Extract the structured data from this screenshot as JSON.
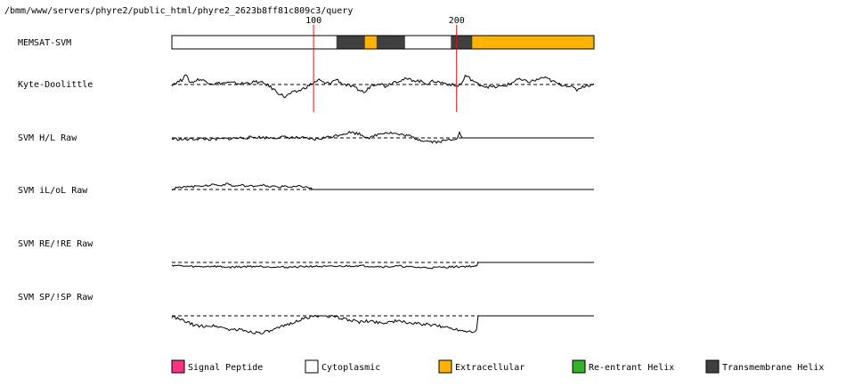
{
  "header": {
    "path": "/bmm/www/servers/phyre2/public_html/phyre2_2623b8ff81c809c3/query"
  },
  "chart_data": {
    "type": "line",
    "sequence_length": 296,
    "position_ticks": [
      {
        "label": "100",
        "position": 100
      },
      {
        "label": "200",
        "position": 200
      }
    ],
    "memsat_segments": [
      {
        "start": 1,
        "end": 115,
        "type": "cytoplasmic"
      },
      {
        "start": 116,
        "end": 135,
        "type": "transmembrane"
      },
      {
        "start": 136,
        "end": 143,
        "type": "extracellular"
      },
      {
        "start": 144,
        "end": 163,
        "type": "transmembrane"
      },
      {
        "start": 164,
        "end": 195,
        "type": "cytoplasmic"
      },
      {
        "start": 196,
        "end": 210,
        "type": "transmembrane"
      },
      {
        "start": 211,
        "end": 296,
        "type": "extracellular"
      }
    ],
    "tracks": [
      {
        "label": "MEMSAT-SVM",
        "kind": "bar"
      },
      {
        "label": "Kyte-Doolittle",
        "kind": "line",
        "profile": [
          [
            1,
            0.0
          ],
          [
            8,
            0.25
          ],
          [
            10,
            0.6
          ],
          [
            14,
            0.1
          ],
          [
            20,
            0.3
          ],
          [
            30,
            0.05
          ],
          [
            40,
            0.1
          ],
          [
            50,
            0.05
          ],
          [
            60,
            0.15
          ],
          [
            66,
            0.05
          ],
          [
            70,
            -0.15
          ],
          [
            76,
            -0.5
          ],
          [
            80,
            -0.7
          ],
          [
            84,
            -0.5
          ],
          [
            90,
            -0.35
          ],
          [
            96,
            -0.1
          ],
          [
            100,
            0.1
          ],
          [
            104,
            0.25
          ],
          [
            108,
            0.05
          ],
          [
            112,
            0.1
          ],
          [
            116,
            0.3
          ],
          [
            120,
            0.05
          ],
          [
            126,
            -0.1
          ],
          [
            136,
            -0.45
          ],
          [
            140,
            -0.05
          ],
          [
            146,
            0.1
          ],
          [
            150,
            -0.1
          ],
          [
            156,
            0.15
          ],
          [
            164,
            0.3
          ],
          [
            170,
            0.25
          ],
          [
            176,
            0.15
          ],
          [
            180,
            0.05
          ],
          [
            184,
            0.2
          ],
          [
            190,
            0.1
          ],
          [
            196,
            0.0
          ],
          [
            200,
            -0.1
          ],
          [
            204,
            0.1
          ],
          [
            206,
            0.5
          ],
          [
            210,
            0.3
          ],
          [
            214,
            0.05
          ],
          [
            220,
            -0.1
          ],
          [
            226,
            -0.15
          ],
          [
            232,
            -0.1
          ],
          [
            238,
            0.05
          ],
          [
            242,
            0.3
          ],
          [
            250,
            0.15
          ],
          [
            256,
            0.25
          ],
          [
            260,
            0.4
          ],
          [
            264,
            0.3
          ],
          [
            268,
            0.15
          ],
          [
            272,
            0.0
          ],
          [
            278,
            -0.05
          ],
          [
            284,
            -0.3
          ],
          [
            288,
            -0.1
          ],
          [
            292,
            -0.05
          ],
          [
            296,
            0.05
          ]
        ]
      },
      {
        "label": "SVM H/L Raw",
        "kind": "line",
        "profile": [
          [
            1,
            -0.05
          ],
          [
            10,
            -0.1
          ],
          [
            20,
            -0.05
          ],
          [
            30,
            -0.1
          ],
          [
            40,
            -0.05
          ],
          [
            50,
            0.0
          ],
          [
            60,
            0.05
          ],
          [
            70,
            0.0
          ],
          [
            80,
            0.05
          ],
          [
            90,
            0.0
          ],
          [
            96,
            -0.05
          ],
          [
            100,
            -0.1
          ],
          [
            104,
            -0.05
          ],
          [
            110,
            0.05
          ],
          [
            116,
            0.15
          ],
          [
            120,
            0.25
          ],
          [
            126,
            0.35
          ],
          [
            132,
            0.25
          ],
          [
            136,
            0.1
          ],
          [
            140,
            0.0
          ],
          [
            144,
            0.2
          ],
          [
            150,
            0.35
          ],
          [
            156,
            0.3
          ],
          [
            160,
            0.2
          ],
          [
            166,
            0.15
          ],
          [
            170,
            0.0
          ],
          [
            176,
            -0.15
          ],
          [
            180,
            -0.2
          ],
          [
            186,
            -0.25
          ],
          [
            190,
            -0.2
          ],
          [
            196,
            -0.1
          ],
          [
            200,
            0.0
          ],
          [
            202,
            0.3
          ],
          [
            204,
            0.0
          ],
          [
            296,
            0.0
          ]
        ]
      },
      {
        "label": "SVM iL/oL Raw",
        "kind": "line",
        "profile": [
          [
            1,
            0.0
          ],
          [
            4,
            0.2
          ],
          [
            8,
            0.15
          ],
          [
            12,
            0.35
          ],
          [
            16,
            0.25
          ],
          [
            20,
            0.4
          ],
          [
            24,
            0.3
          ],
          [
            30,
            0.5
          ],
          [
            34,
            0.35
          ],
          [
            40,
            0.55
          ],
          [
            44,
            0.3
          ],
          [
            50,
            0.4
          ],
          [
            54,
            0.3
          ],
          [
            60,
            0.35
          ],
          [
            64,
            0.45
          ],
          [
            68,
            0.25
          ],
          [
            72,
            0.3
          ],
          [
            76,
            0.2
          ],
          [
            80,
            0.35
          ],
          [
            84,
            0.2
          ],
          [
            90,
            0.3
          ],
          [
            96,
            0.2
          ],
          [
            100,
            0.0
          ],
          [
            296,
            0.0
          ]
        ]
      },
      {
        "label": "SVM RE/!RE Raw",
        "kind": "line",
        "profile": [
          [
            1,
            -0.25
          ],
          [
            10,
            -0.35
          ],
          [
            20,
            -0.4
          ],
          [
            30,
            -0.35
          ],
          [
            40,
            -0.45
          ],
          [
            50,
            -0.4
          ],
          [
            60,
            -0.35
          ],
          [
            70,
            -0.4
          ],
          [
            80,
            -0.45
          ],
          [
            90,
            -0.4
          ],
          [
            100,
            -0.35
          ],
          [
            110,
            -0.4
          ],
          [
            120,
            -0.35
          ],
          [
            130,
            -0.3
          ],
          [
            140,
            -0.35
          ],
          [
            150,
            -0.4
          ],
          [
            160,
            -0.35
          ],
          [
            170,
            -0.45
          ],
          [
            180,
            -0.5
          ],
          [
            190,
            -0.45
          ],
          [
            200,
            -0.4
          ],
          [
            210,
            -0.35
          ],
          [
            214,
            -0.4
          ],
          [
            215,
            0.0
          ],
          [
            296,
            0.0
          ]
        ]
      },
      {
        "label": "SVM SP/!SP Raw",
        "kind": "line",
        "profile": [
          [
            1,
            -0.05
          ],
          [
            6,
            -0.2
          ],
          [
            10,
            -0.3
          ],
          [
            14,
            -0.45
          ],
          [
            20,
            -0.6
          ],
          [
            26,
            -0.55
          ],
          [
            34,
            -0.6
          ],
          [
            40,
            -0.75
          ],
          [
            50,
            -0.8
          ],
          [
            56,
            -0.9
          ],
          [
            62,
            -0.95
          ],
          [
            68,
            -0.9
          ],
          [
            74,
            -0.75
          ],
          [
            80,
            -0.55
          ],
          [
            86,
            -0.35
          ],
          [
            92,
            -0.2
          ],
          [
            98,
            -0.05
          ],
          [
            104,
            0.0
          ],
          [
            110,
            0.0
          ],
          [
            116,
            -0.1
          ],
          [
            124,
            -0.2
          ],
          [
            132,
            -0.35
          ],
          [
            140,
            -0.3
          ],
          [
            148,
            -0.4
          ],
          [
            156,
            -0.3
          ],
          [
            164,
            -0.35
          ],
          [
            172,
            -0.45
          ],
          [
            180,
            -0.5
          ],
          [
            190,
            -0.6
          ],
          [
            200,
            -0.75
          ],
          [
            206,
            -0.85
          ],
          [
            212,
            -0.85
          ],
          [
            214,
            -0.8
          ],
          [
            215,
            0.0
          ],
          [
            296,
            0.0
          ]
        ]
      }
    ],
    "legend": [
      {
        "label": "Signal Peptide",
        "color": "#ff3380"
      },
      {
        "label": "Cytoplasmic",
        "color": "#ffffff"
      },
      {
        "label": "Extracellular",
        "color": "#ffb300"
      },
      {
        "label": "Re-entrant Helix",
        "color": "#33b329"
      },
      {
        "label": "Transmembrane Helix",
        "color": "#404040"
      }
    ],
    "segment_colors": {
      "cytoplasmic": "#ffffff",
      "transmembrane": "#404040",
      "extracellular": "#ffb300",
      "signal": "#ff3380",
      "reentrant": "#33b329"
    },
    "marker_color": "#e81010",
    "legend_position": "bottom"
  }
}
